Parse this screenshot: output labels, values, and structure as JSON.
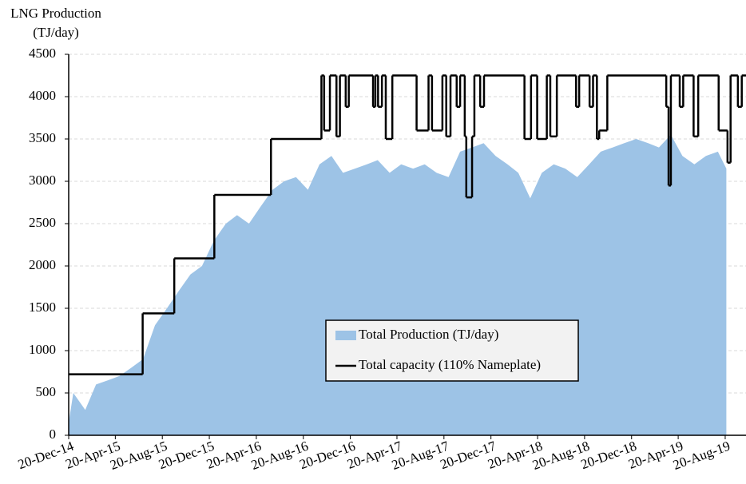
{
  "chart_data": {
    "type": "area_step",
    "y_label": [
      "LNG Production",
      "(TJ/day)"
    ],
    "xlim": [
      "2014-12-20",
      "2019-10-13"
    ],
    "xticks": [
      {
        "value": "2014-12-20",
        "label": "20-Dec-14"
      },
      {
        "value": "2015-04-20",
        "label": "20-Apr-15"
      },
      {
        "value": "2015-08-20",
        "label": "20-Aug-15"
      },
      {
        "value": "2015-12-20",
        "label": "20-Dec-15"
      },
      {
        "value": "2016-04-20",
        "label": "20-Apr-16"
      },
      {
        "value": "2016-08-20",
        "label": "20-Aug-16"
      },
      {
        "value": "2016-12-20",
        "label": "20-Dec-16"
      },
      {
        "value": "2017-04-20",
        "label": "20-Apr-17"
      },
      {
        "value": "2017-08-20",
        "label": "20-Aug-17"
      },
      {
        "value": "2017-12-20",
        "label": "20-Dec-17"
      },
      {
        "value": "2018-04-20",
        "label": "20-Apr-18"
      },
      {
        "value": "2018-08-20",
        "label": "20-Aug-18"
      },
      {
        "value": "2018-12-20",
        "label": "20-Dec-18"
      },
      {
        "value": "2019-04-20",
        "label": "20-Apr-19"
      },
      {
        "value": "2019-08-20",
        "label": "20-Aug-19"
      }
    ],
    "ylim": [
      0,
      4500
    ],
    "yticks": [
      0,
      500,
      1000,
      1500,
      2000,
      2500,
      3000,
      3500,
      4000,
      4500
    ],
    "grid": true,
    "series": [
      {
        "name": "Total Production (TJ/day)",
        "kind": "area",
        "color": "#9dc3e6",
        "x": [
          "2014-12-20",
          "2015-01-01",
          "2015-02-01",
          "2015-03-01",
          "2015-04-01",
          "2015-05-01",
          "2015-06-01",
          "2015-07-01",
          "2015-08-01",
          "2015-09-01",
          "2015-10-01",
          "2015-11-01",
          "2015-12-01",
          "2016-01-01",
          "2016-02-01",
          "2016-03-01",
          "2016-04-01",
          "2016-05-01",
          "2016-06-01",
          "2016-07-01",
          "2016-08-01",
          "2016-09-01",
          "2016-10-01",
          "2016-11-01",
          "2016-12-01",
          "2017-01-01",
          "2017-02-01",
          "2017-03-01",
          "2017-04-01",
          "2017-05-01",
          "2017-06-01",
          "2017-07-01",
          "2017-08-01",
          "2017-09-01",
          "2017-10-01",
          "2017-11-01",
          "2017-12-01",
          "2018-01-01",
          "2018-02-01",
          "2018-03-01",
          "2018-04-01",
          "2018-05-01",
          "2018-06-01",
          "2018-07-01",
          "2018-08-01",
          "2018-09-01",
          "2018-10-01",
          "2018-11-01",
          "2018-12-01",
          "2019-01-01",
          "2019-02-01",
          "2019-03-01",
          "2019-04-01",
          "2019-05-01",
          "2019-06-01",
          "2019-07-01",
          "2019-08-01",
          "2019-08-23"
        ],
        "values": [
          150,
          500,
          300,
          600,
          650,
          700,
          800,
          900,
          1300,
          1500,
          1700,
          1900,
          2000,
          2300,
          2500,
          2600,
          2500,
          2700,
          2900,
          3000,
          3050,
          2900,
          3200,
          3300,
          3100,
          3150,
          3200,
          3250,
          3100,
          3200,
          3150,
          3200,
          3100,
          3050,
          3350,
          3400,
          3450,
          3300,
          3200,
          3100,
          2800,
          3100,
          3200,
          3150,
          3050,
          3200,
          3350,
          3400,
          3450,
          3500,
          3450,
          3400,
          3550,
          3300,
          3200,
          3300,
          3350,
          3150
        ]
      },
      {
        "name": "Total capacity (110% Nameplate)",
        "kind": "step",
        "color": "#000000",
        "x": [
          "2014-12-20",
          "2015-06-30",
          "2015-09-20",
          "2016-01-02",
          "2016-05-28",
          "2016-10-06",
          "2016-10-13",
          "2016-10-28",
          "2016-11-14",
          "2016-11-23",
          "2016-12-08",
          "2016-12-16",
          "2017-02-17",
          "2017-02-23",
          "2017-03-02",
          "2017-03-12",
          "2017-03-22",
          "2017-04-08",
          "2017-06-10",
          "2017-07-11",
          "2017-07-20",
          "2017-08-16",
          "2017-08-26",
          "2017-09-06",
          "2017-09-22",
          "2017-10-01",
          "2017-10-13",
          "2017-10-17",
          "2017-11-01",
          "2017-11-07",
          "2017-11-22",
          "2017-12-02",
          "2018-03-17",
          "2018-04-03",
          "2018-04-19",
          "2018-05-14",
          "2018-05-23",
          "2018-06-09",
          "2018-07-29",
          "2018-08-06",
          "2018-09-02",
          "2018-09-11",
          "2018-09-21",
          "2018-09-27",
          "2018-10-18",
          "2019-03-20",
          "2019-03-26",
          "2019-04-01",
          "2019-04-24",
          "2019-05-03",
          "2019-05-30",
          "2019-06-11",
          "2019-08-03",
          "2019-08-26",
          "2019-09-03",
          "2019-09-22",
          "2019-10-02"
        ],
        "values": [
          720,
          1440,
          2090,
          2840,
          3500,
          4250,
          3600,
          4250,
          3530,
          4250,
          3880,
          4250,
          3880,
          4250,
          3880,
          4250,
          3500,
          4250,
          3600,
          4250,
          3600,
          4250,
          3530,
          4250,
          3880,
          4250,
          3530,
          2810,
          3530,
          4250,
          3880,
          4250,
          3500,
          4250,
          3500,
          4250,
          3530,
          4250,
          3880,
          4250,
          3880,
          4250,
          3500,
          3600,
          4250,
          3880,
          2950,
          4250,
          3880,
          4250,
          3530,
          4250,
          3600,
          3220,
          4250,
          3880,
          4250
        ]
      }
    ]
  }
}
